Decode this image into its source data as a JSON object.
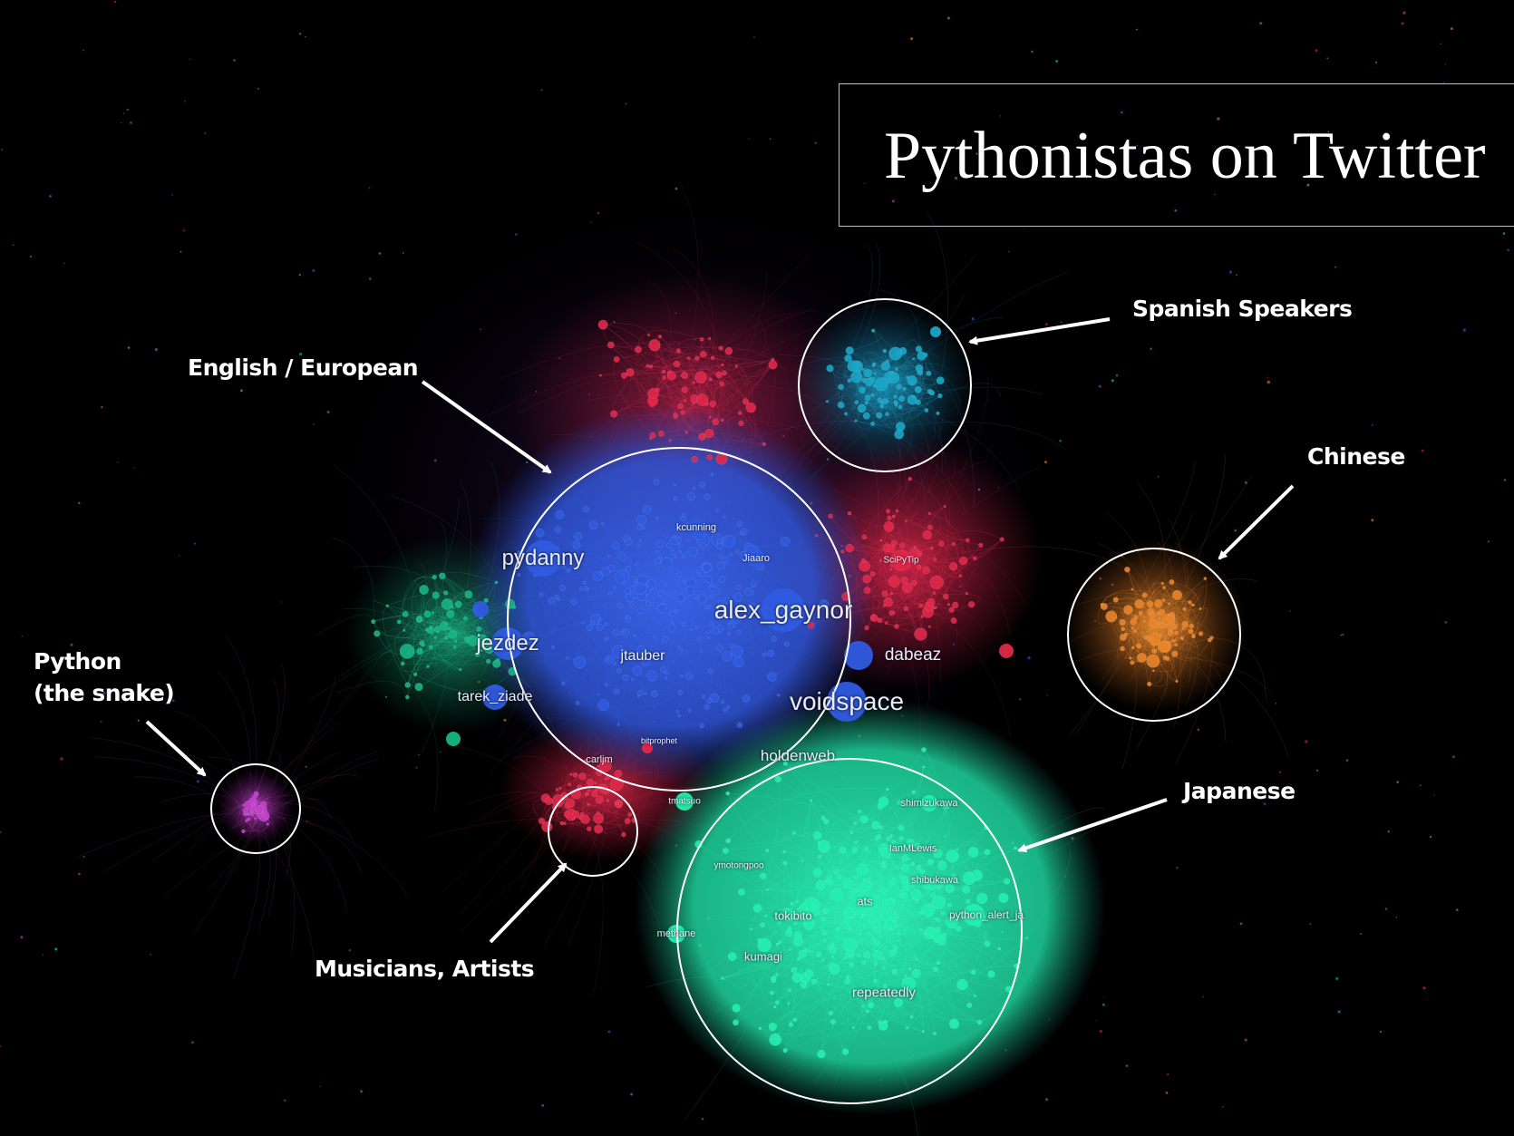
{
  "title": "Pythonistas on Twitter",
  "colors": {
    "background": "#000000",
    "english": "#2f5be0",
    "red": "#e0284a",
    "spanish": "#1aa6c8",
    "chinese": "#e8842a",
    "japanese": "#23f0b0",
    "green": "#16b585",
    "snake": "#c040c8",
    "annotation": "#ffffff"
  },
  "annotations": [
    {
      "id": "english",
      "label": "English / European"
    },
    {
      "id": "spanish",
      "label": "Spanish Speakers"
    },
    {
      "id": "chinese",
      "label": "Chinese"
    },
    {
      "id": "japanese",
      "label": "Japanese"
    },
    {
      "id": "musicians",
      "label": "Musicians, Artists"
    },
    {
      "id": "snake",
      "label_line1": "Python",
      "label_line2": "(the snake)"
    }
  ],
  "node_labels": {
    "pydanny": "pydanny",
    "alex_gaynor": "alex_gaynor",
    "jezdez": "jezdez",
    "jtauber": "jtauber",
    "tarek_ziade": "tarek_ziade",
    "voidspace": "voidspace",
    "dabeaz": "dabeaz",
    "kcunning": "kcunning",
    "jiaaro": "Jiaaro",
    "scipytip": "SciPyTip",
    "holdenweb": "holdenweb",
    "bitprophet": "bitprophet",
    "carljm": "carljm",
    "shimizukawa": "shimizukawa",
    "ianmlewis": "IanMLewis",
    "shibukawa": "shibukawa",
    "ats": "ats",
    "tokibito": "tokibito",
    "python_alert_ja": "python_alert_ja",
    "methane": "methane",
    "kumagi": "kumagi",
    "repeatedly": "repeatedly",
    "ymotongpoo": "ymotongpoo",
    "tmatsuo": "tmatsuo"
  }
}
